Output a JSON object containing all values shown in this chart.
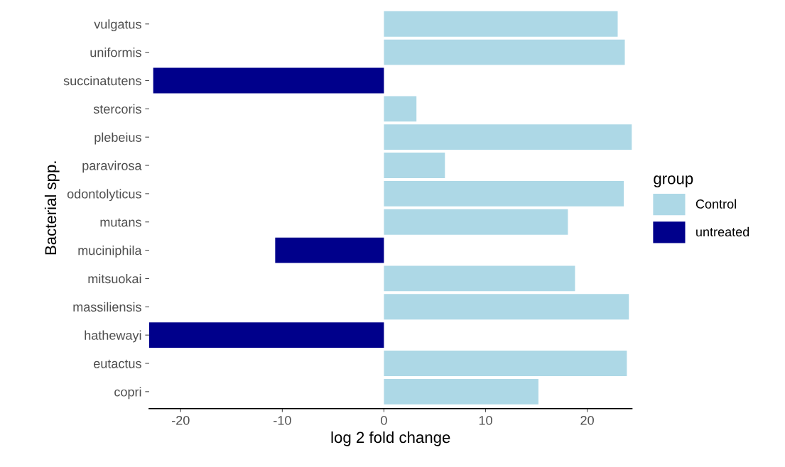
{
  "chart_data": {
    "type": "bar",
    "orientation": "horizontal",
    "xlabel": "log 2 fold change",
    "ylabel": "Bacterial spp.",
    "legend_title": "group",
    "legend": "right",
    "grid": false,
    "categories": [
      "vulgatus",
      "uniformis",
      "succinatutens",
      "stercoris",
      "plebeius",
      "paravirosa",
      "odontolyticus",
      "mutans",
      "muciniphila",
      "mitsuokai",
      "massiliensis",
      "hathewayi",
      "eutactus",
      "copri"
    ],
    "series": [
      {
        "name": "Control",
        "color": "#add8e6",
        "values": [
          23.0,
          23.7,
          null,
          3.2,
          24.4,
          6.0,
          23.6,
          18.1,
          null,
          18.8,
          24.1,
          null,
          23.9,
          15.2
        ]
      },
      {
        "name": "untreated",
        "color": "#00008b",
        "values": [
          null,
          null,
          -22.7,
          null,
          null,
          null,
          null,
          null,
          -10.7,
          null,
          null,
          -23.1,
          null,
          null
        ]
      }
    ],
    "xlim": [
      -23.1,
      24.4
    ],
    "xticks": [
      {
        "value": -20,
        "label": "-20"
      },
      {
        "value": -10,
        "label": "-10"
      },
      0,
      10,
      20
    ]
  }
}
